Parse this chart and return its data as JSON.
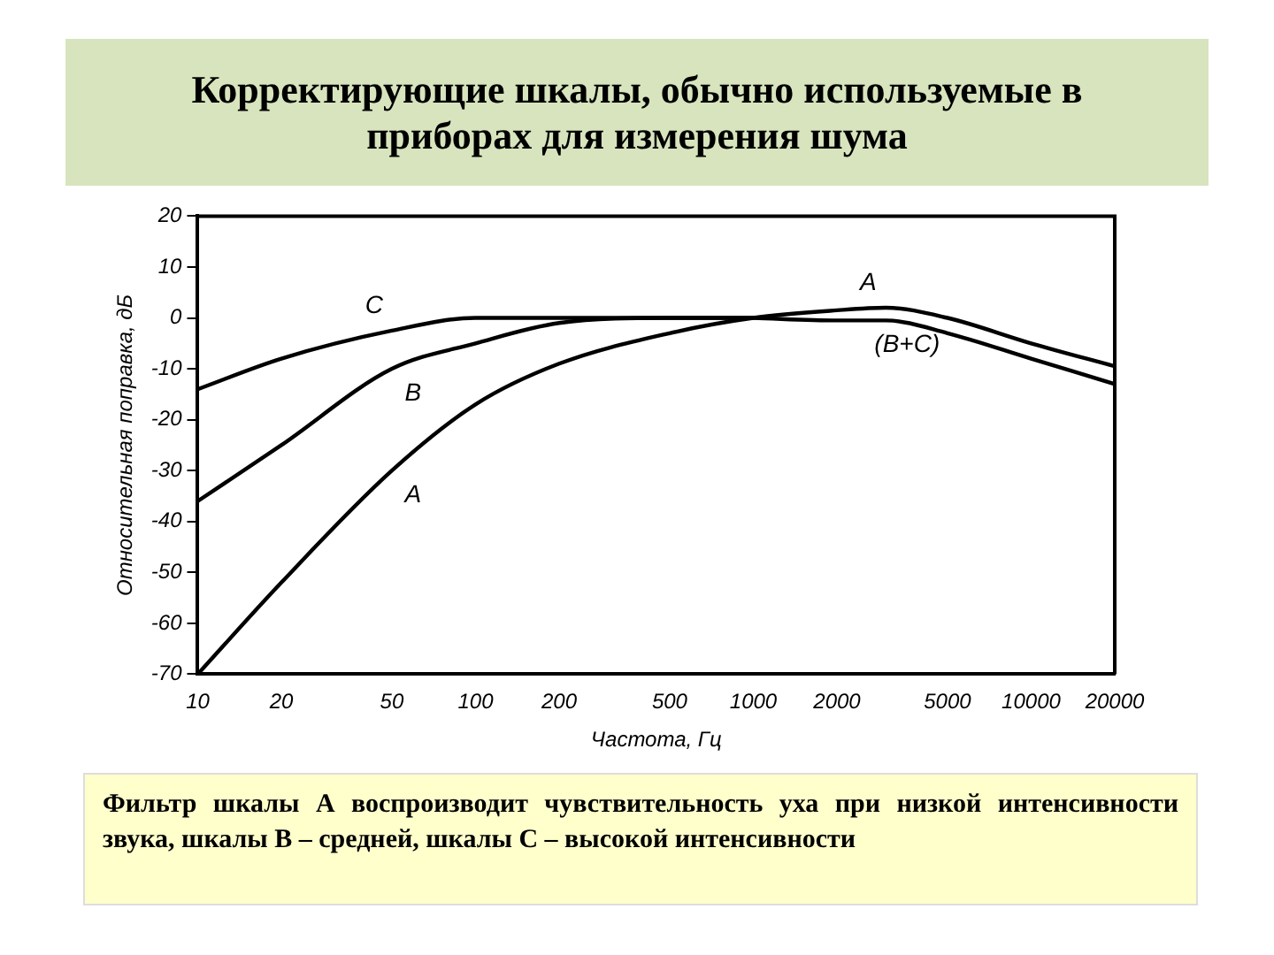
{
  "chart_data": {
    "type": "line",
    "title": "Корректирующие шкалы, обычно используемые в приборах для измерения шума",
    "xlabel": "Частота, Гц",
    "ylabel": "Относительная поправка, дБ",
    "log": "x",
    "xlim": [
      10,
      20000
    ],
    "xticks": [
      10,
      20,
      50,
      100,
      200,
      500,
      1000,
      2000,
      5000,
      10000,
      20000
    ],
    "ylim": [
      -70,
      20
    ],
    "yticks": [
      -70,
      -60,
      -50,
      -40,
      -30,
      -20,
      -10,
      0,
      10,
      20
    ],
    "grid": false,
    "legend": false,
    "marker": "none",
    "line_style": "solid",
    "series": [
      {
        "name": "A",
        "color": "#000000",
        "x": [
          10,
          20,
          50,
          100,
          200,
          500,
          1000,
          2000,
          3000,
          5000,
          10000,
          20000
        ],
        "values": [
          -70,
          -52,
          -30,
          -17,
          -9,
          -3,
          0,
          1.5,
          2,
          0,
          -5,
          -9.5
        ]
      },
      {
        "name": "B",
        "color": "#000000",
        "x": [
          10,
          20,
          50,
          100,
          200,
          500,
          1000
        ],
        "values": [
          -36,
          -25,
          -10,
          -5,
          -1,
          0,
          0
        ]
      },
      {
        "name": "C",
        "color": "#000000",
        "x": [
          10,
          20,
          50,
          100,
          200,
          500,
          1000
        ],
        "values": [
          -14,
          -8,
          -2.5,
          0,
          0,
          0,
          0
        ]
      },
      {
        "name": "(B+C)",
        "color": "#000000",
        "x": [
          1000,
          2000,
          3000,
          5000,
          10000,
          20000
        ],
        "values": [
          0,
          -0.5,
          -0.5,
          -3,
          -8,
          -13
        ]
      }
    ],
    "annotations": [
      "Фильтр шкалы А воспроизводит чувствительность уха при низкой интенсивности звука, шкалы В – средней, шкалы С – высокой интенсивности"
    ]
  }
}
